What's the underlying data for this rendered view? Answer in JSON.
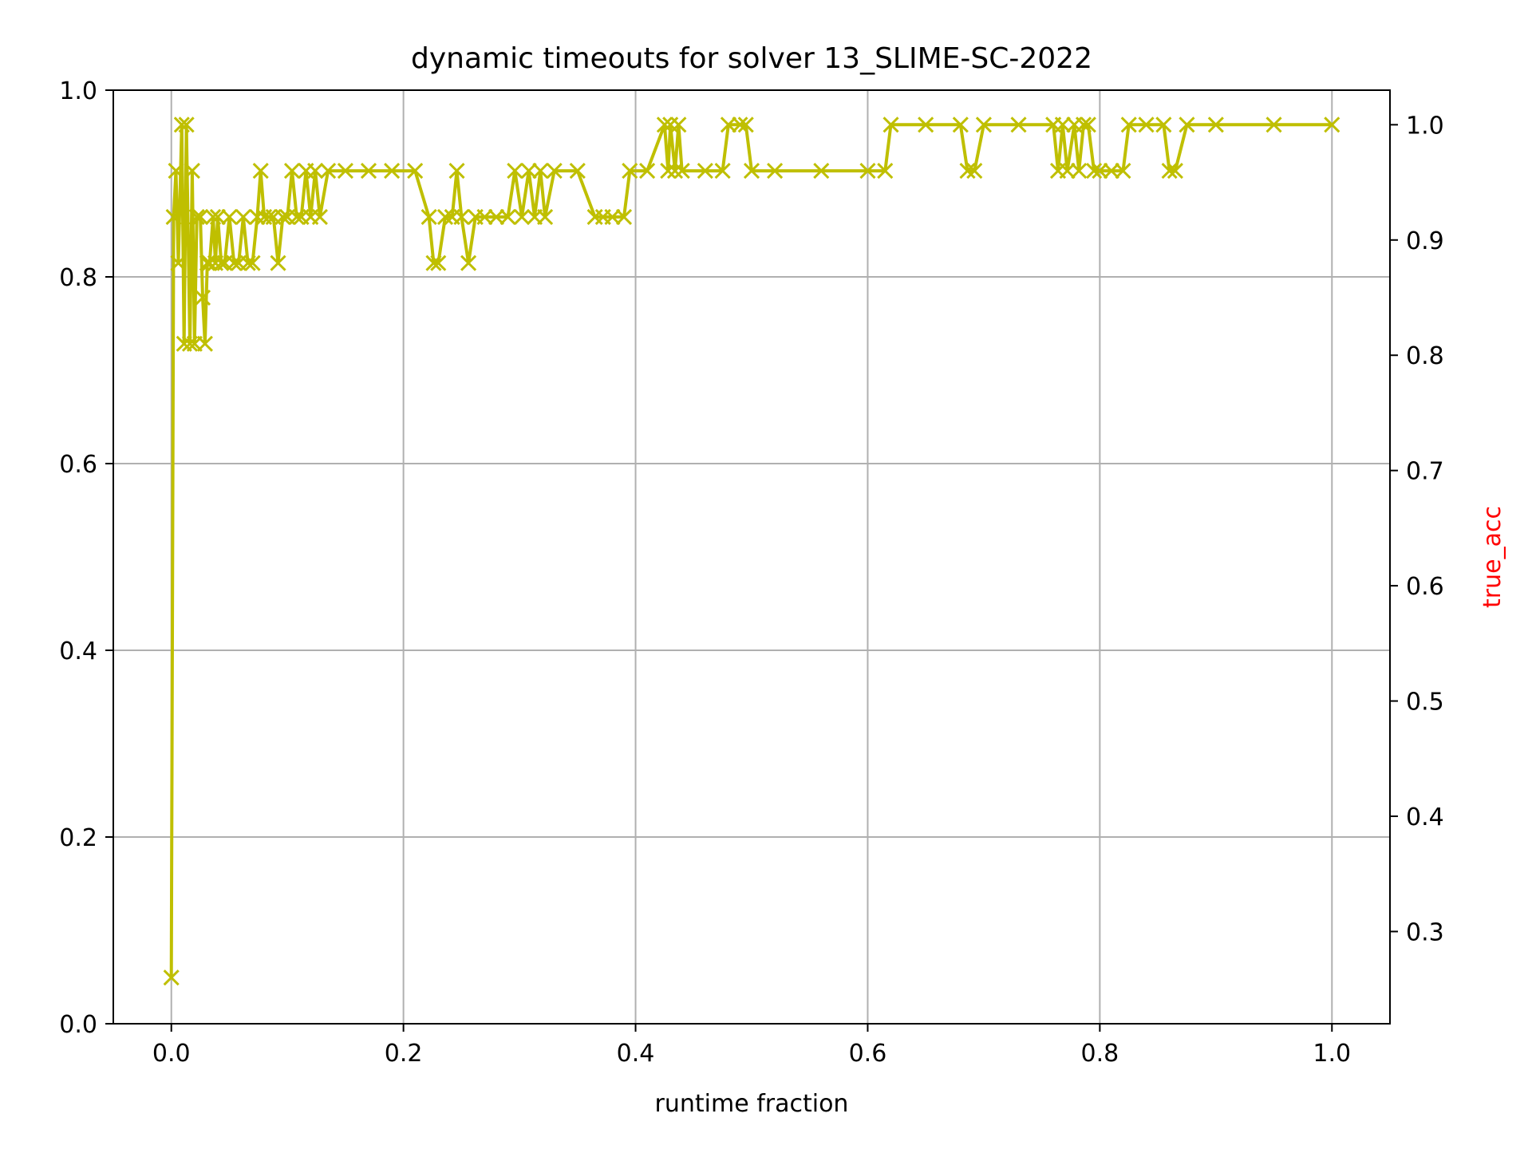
{
  "chart_data": {
    "type": "line",
    "title": "dynamic timeouts for solver 13_SLIME-SC-2022",
    "xlabel": "runtime fraction",
    "ylabel": "",
    "y2label": "true_acc",
    "y2label_color": "#ff0000",
    "series_color": "#bfbf00",
    "marker": "x",
    "grid": true,
    "xlim": [
      -0.05,
      1.05
    ],
    "ylim": [
      0.0,
      1.0
    ],
    "y2lim": [
      0.22,
      1.03
    ],
    "xticks": [
      0.0,
      0.2,
      0.4,
      0.6,
      0.8,
      1.0
    ],
    "yticks": [
      0.0,
      0.2,
      0.4,
      0.6,
      0.8,
      1.0
    ],
    "y2ticks": [
      0.3,
      0.4,
      0.5,
      0.6,
      0.7,
      0.8,
      0.9,
      1.0
    ],
    "xtick_labels": [
      "0.0",
      "0.2",
      "0.4",
      "0.6",
      "0.8",
      "1.0"
    ],
    "ytick_labels": [
      "0.0",
      "0.2",
      "0.4",
      "0.6",
      "0.8",
      "1.0"
    ],
    "y2tick_labels": [
      "0.3",
      "0.4",
      "0.5",
      "0.6",
      "0.7",
      "0.8",
      "0.9",
      "1.0"
    ],
    "series": [
      {
        "axis": "right",
        "x": [
          0.0,
          0.002,
          0.004,
          0.006,
          0.009,
          0.011,
          0.013,
          0.016,
          0.018,
          0.02,
          0.022,
          0.025,
          0.027,
          0.029,
          0.031,
          0.033,
          0.036,
          0.038,
          0.04,
          0.043,
          0.046,
          0.05,
          0.054,
          0.058,
          0.062,
          0.066,
          0.07,
          0.074,
          0.077,
          0.08,
          0.084,
          0.088,
          0.092,
          0.096,
          0.1,
          0.104,
          0.108,
          0.112,
          0.116,
          0.12,
          0.124,
          0.128,
          0.135,
          0.15,
          0.17,
          0.19,
          0.21,
          0.222,
          0.226,
          0.23,
          0.236,
          0.242,
          0.246,
          0.25,
          0.256,
          0.262,
          0.27,
          0.28,
          0.29,
          0.296,
          0.302,
          0.308,
          0.313,
          0.318,
          0.322,
          0.33,
          0.35,
          0.365,
          0.372,
          0.38,
          0.39,
          0.395,
          0.41,
          0.425,
          0.428,
          0.43,
          0.434,
          0.437,
          0.44,
          0.46,
          0.475,
          0.48,
          0.49,
          0.495,
          0.5,
          0.52,
          0.56,
          0.6,
          0.615,
          0.62,
          0.65,
          0.68,
          0.686,
          0.692,
          0.7,
          0.73,
          0.76,
          0.764,
          0.768,
          0.772,
          0.778,
          0.782,
          0.786,
          0.79,
          0.795,
          0.8,
          0.81,
          0.82,
          0.825,
          0.84,
          0.855,
          0.86,
          0.865,
          0.875,
          0.9,
          0.95,
          1.0
        ],
        "values": [
          0.26,
          0.92,
          0.96,
          0.88,
          1.0,
          0.81,
          1.0,
          0.81,
          0.96,
          0.81,
          0.92,
          0.92,
          0.85,
          0.81,
          0.88,
          0.88,
          0.92,
          0.88,
          0.92,
          0.88,
          0.88,
          0.92,
          0.88,
          0.88,
          0.92,
          0.88,
          0.88,
          0.92,
          0.96,
          0.92,
          0.92,
          0.92,
          0.88,
          0.92,
          0.92,
          0.96,
          0.92,
          0.92,
          0.96,
          0.92,
          0.96,
          0.92,
          0.96,
          0.96,
          0.96,
          0.96,
          0.96,
          0.92,
          0.88,
          0.88,
          0.92,
          0.92,
          0.96,
          0.92,
          0.88,
          0.92,
          0.92,
          0.92,
          0.92,
          0.96,
          0.92,
          0.96,
          0.92,
          0.96,
          0.92,
          0.96,
          0.96,
          0.92,
          0.92,
          0.92,
          0.92,
          0.96,
          0.96,
          1.0,
          0.96,
          1.0,
          0.96,
          1.0,
          0.96,
          0.96,
          0.96,
          1.0,
          1.0,
          1.0,
          0.96,
          0.96,
          0.96,
          0.96,
          0.96,
          1.0,
          1.0,
          1.0,
          0.96,
          0.96,
          1.0,
          1.0,
          1.0,
          0.96,
          1.0,
          0.96,
          1.0,
          0.96,
          1.0,
          1.0,
          0.96,
          0.96,
          0.96,
          0.96,
          1.0,
          1.0,
          1.0,
          0.96,
          0.96,
          1.0,
          1.0,
          1.0,
          1.0
        ]
      }
    ]
  }
}
